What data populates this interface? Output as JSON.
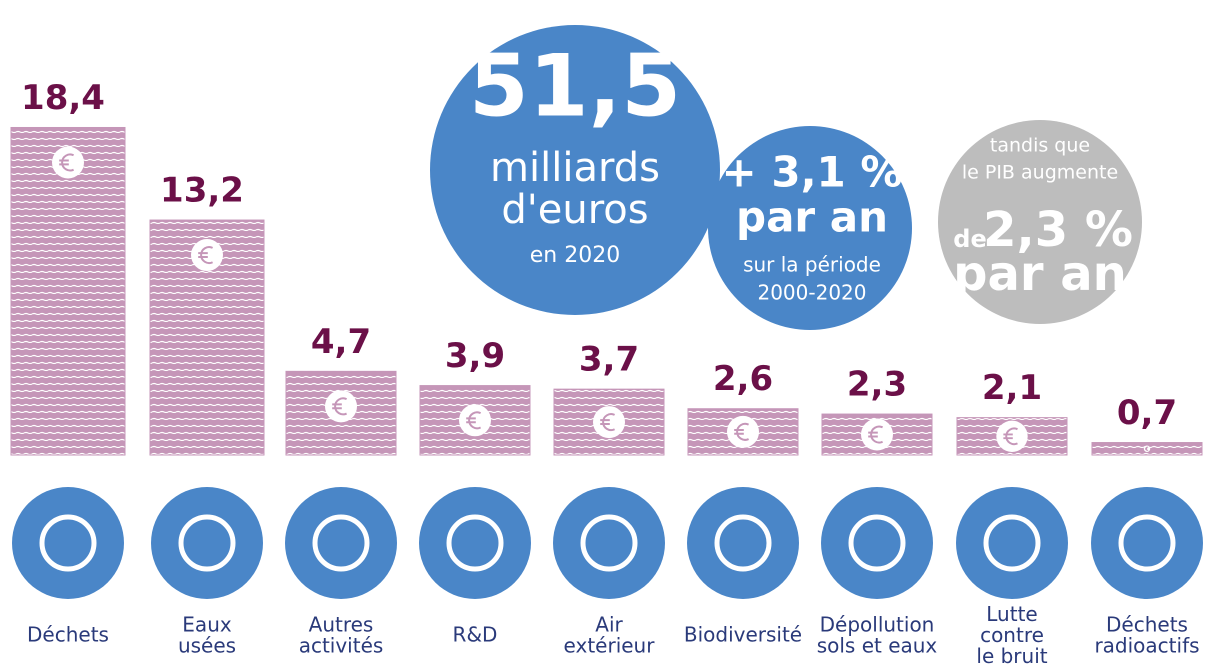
{
  "chart_data": {
    "type": "bar",
    "categories": [
      "Déchets",
      "Eaux\nusées",
      "Autres\nactivités",
      "R&D",
      "Air\nextérieur",
      "Biodiversité",
      "Dépollution\nsols et eaux",
      "Lutte\ncontre\nle bruit",
      "Déchets\nradioactifs"
    ],
    "values": [
      18.4,
      13.2,
      4.7,
      3.9,
      3.7,
      2.6,
      2.3,
      2.1,
      0.7
    ],
    "value_labels": [
      "18,4",
      "13,2",
      "4,7",
      "3,9",
      "3,7",
      "2,6",
      "2,3",
      "2,1",
      "0,7"
    ],
    "color": "#c596b8",
    "label_color": "#6b1048",
    "icon_color": "#4a86c8",
    "annotations": {
      "total": [
        "51,5",
        "milliards",
        "d'euros",
        "en 2020"
      ],
      "growth": [
        "+ 3,1 %",
        "par an",
        "sur la période",
        "2000-2020"
      ],
      "gdp": [
        "tandis que",
        "le PIB augmente",
        "de",
        "2,3 %",
        "par an"
      ]
    }
  }
}
